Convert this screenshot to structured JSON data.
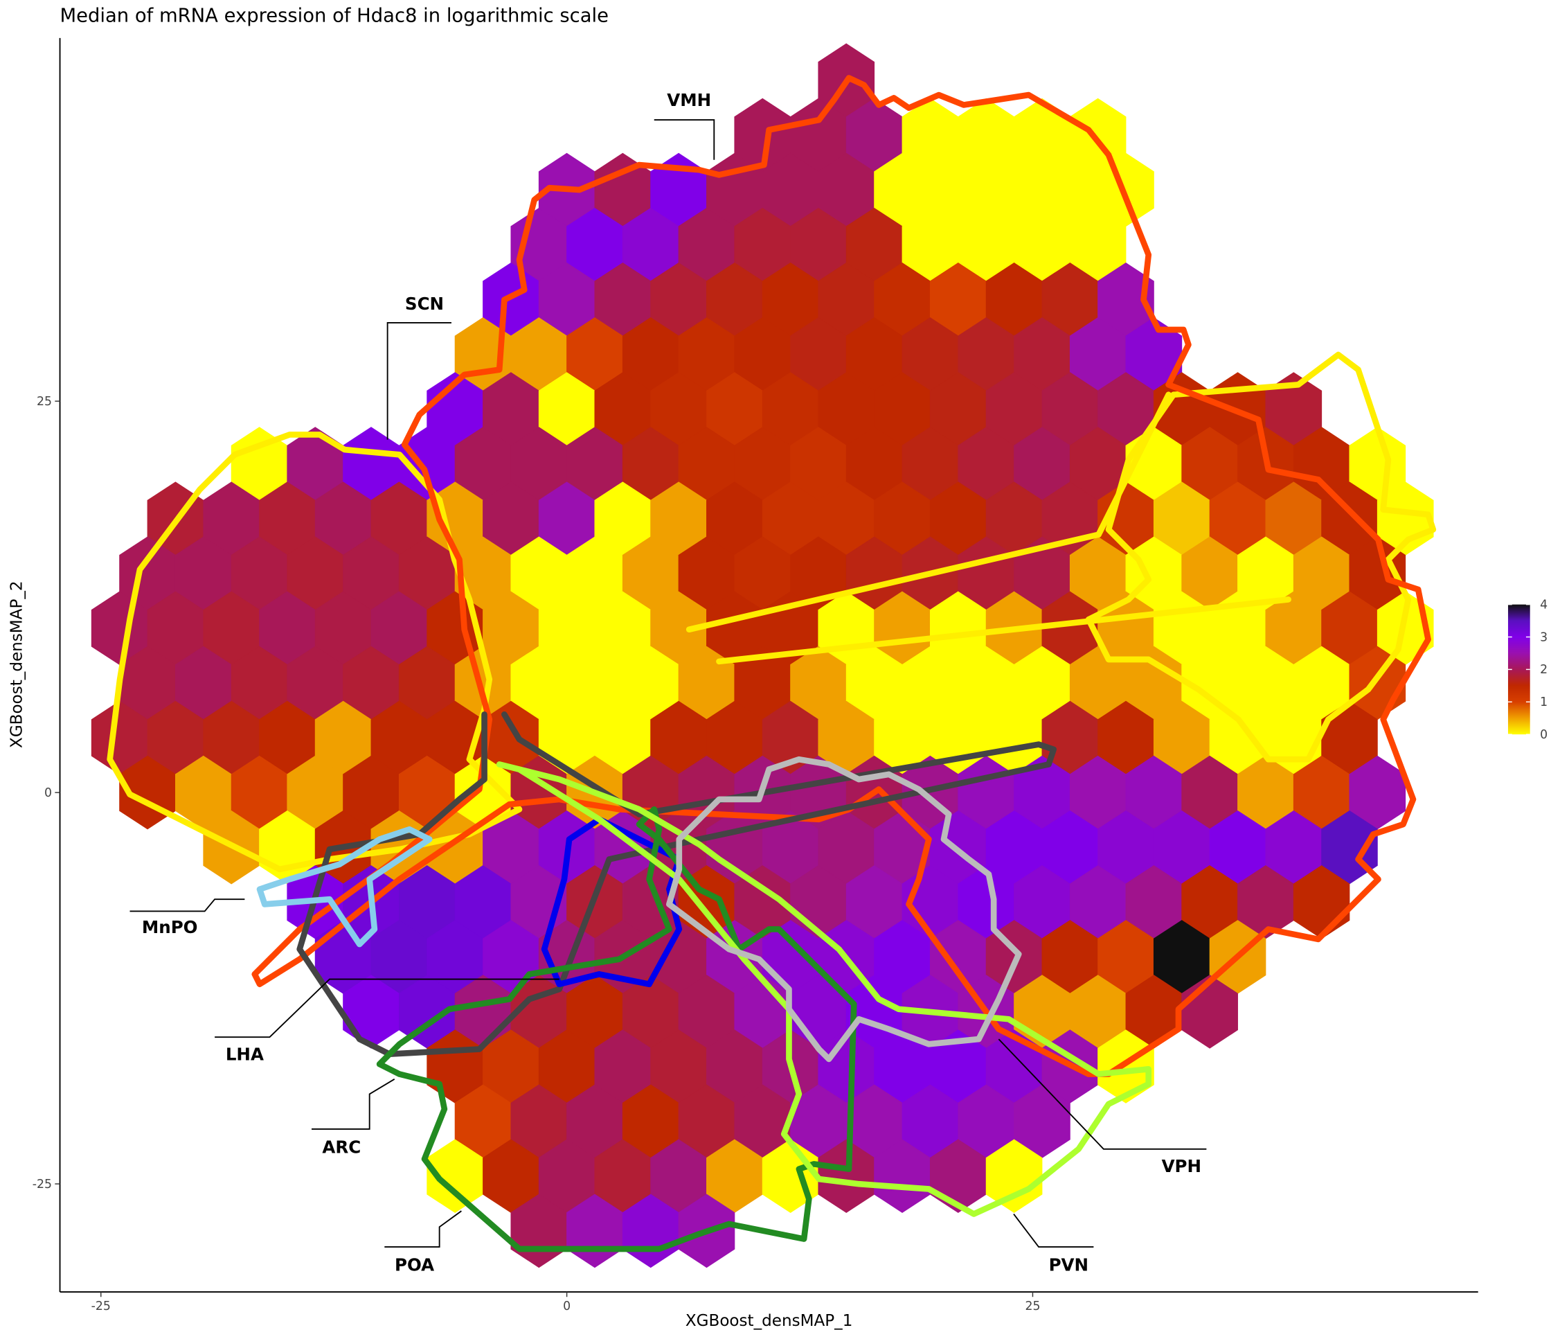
{
  "chart_data": {
    "type": "hexbin",
    "title": "Median of mRNA expression of Hdac8 in logarithmic scale",
    "x_label": "XGBoost_densMAP_1",
    "y_label": "XGBoost_densMAP_2",
    "xlim": [
      -27.2,
      48.9
    ],
    "ylim": [
      -31.9,
      48.2
    ],
    "xticks": [
      -25,
      0,
      25
    ],
    "yticks": [
      -25,
      0,
      25
    ],
    "colorbar": {
      "clim": [
        0,
        4
      ],
      "ticks": [
        0,
        1,
        2,
        3,
        4
      ],
      "colors": [
        "#ffff00",
        "#f0a000",
        "#d84000",
        "#c02800",
        "#a81858",
        "#9a10b0",
        "#8000e8",
        "#5a10c0",
        "#101010"
      ]
    },
    "hexbins": {
      "dx": 3,
      "dy": 3.5,
      "rows": [
        {
          "y": 45.5,
          "x0": 15,
          "values": [
            2
          ]
        },
        {
          "y": 42,
          "x0": 10.5,
          "values": [
            2,
            2,
            2.2,
            0,
            0,
            0,
            0
          ]
        },
        {
          "y": 38.5,
          "x0": 0,
          "values": [
            2.5,
            2,
            3,
            2,
            2,
            2,
            0,
            0,
            0,
            0,
            0
          ]
        },
        {
          "y": 35,
          "x0": -1.5,
          "values": [
            2.5,
            3,
            2.8,
            2,
            1.8,
            1.8,
            1.6,
            0,
            0,
            0,
            0
          ]
        },
        {
          "y": 31.5,
          "x0": -3,
          "values": [
            3,
            2.5,
            2,
            1.8,
            1.6,
            1.5,
            1.6,
            1.4,
            1,
            1.5,
            1.6,
            2.5
          ]
        },
        {
          "y": 28,
          "x0": -4.5,
          "values": [
            0.5,
            0.5,
            1,
            1.5,
            1.4,
            1.5,
            1.6,
            1.5,
            1.6,
            1.7,
            1.8,
            2.5,
            2.8
          ]
        },
        {
          "y": 24.5,
          "x0": -6,
          "values": [
            3,
            2,
            0,
            1.5,
            1.4,
            1.2,
            1.4,
            1.5,
            1.5,
            1.6,
            1.8,
            1.9,
            2,
            1.5,
            1.5,
            1.8
          ]
        },
        {
          "y": 21,
          "x0": -16.5,
          "values": [
            0,
            2.2,
            3,
            3,
            2,
            2,
            2,
            1.6,
            1.4,
            1.4,
            1.3,
            1.5,
            1.6,
            1.8,
            2,
            1.8,
            0,
            1.2,
            1.4,
            1.5,
            0
          ]
        },
        {
          "y": 17.5,
          "x0": -21,
          "values": [
            1.8,
            2,
            1.8,
            2,
            1.8,
            0.5,
            2,
            2.5,
            0,
            0.5,
            1.5,
            1.3,
            1.3,
            1.4,
            1.5,
            1.7,
            1.8,
            1.2,
            0.3,
            1,
            0.8,
            1.5,
            0
          ]
        },
        {
          "y": 14,
          "x0": -22.5,
          "values": [
            2,
            2,
            1.9,
            1.8,
            1.9,
            1.8,
            0.5,
            0,
            0,
            0.5,
            1.5,
            1.4,
            1.5,
            1.6,
            1.7,
            1.8,
            1.9,
            0.5,
            0,
            0.5,
            0,
            0.5,
            1.5
          ]
        },
        {
          "y": 10.5,
          "x0": -24,
          "values": [
            2,
            1.9,
            1.8,
            2,
            1.9,
            2,
            1.5,
            0.5,
            0,
            0,
            0.5,
            1.5,
            1.5,
            0,
            0.5,
            0,
            0.5,
            1.6,
            0.5,
            0,
            0,
            0.5,
            1.2,
            0
          ]
        },
        {
          "y": 7,
          "x0": -22.5,
          "values": [
            1.9,
            2,
            1.8,
            1.9,
            1.8,
            1.6,
            0.5,
            0,
            0,
            0,
            0.5,
            1.5,
            0.5,
            0,
            0,
            0,
            0,
            0.5,
            0.5,
            0,
            0,
            0,
            1
          ]
        },
        {
          "y": 3.5,
          "x0": -24,
          "values": [
            1.8,
            1.7,
            1.6,
            1.5,
            0.5,
            1.5,
            1.5,
            1.3,
            0,
            0,
            1.5,
            1.5,
            1.7,
            0.5,
            0,
            0,
            0,
            1.7,
            1.5,
            0.5,
            0,
            0,
            1.5
          ]
        },
        {
          "y": 0,
          "x0": -22.5,
          "values": [
            1.5,
            0.5,
            1,
            0.5,
            1.5,
            1,
            0,
            1.8,
            0.5,
            1.8,
            2,
            2.2,
            2.2,
            2,
            2.3,
            2.6,
            2.8,
            2.5,
            2.6,
            2,
            0.5,
            1,
            2.5
          ]
        },
        {
          "y": -3.5,
          "x0": -18,
          "values": [
            0.5,
            0,
            1.5,
            0.5,
            0.5,
            2.5,
            2.8,
            2.5,
            2,
            2.2,
            2.3,
            2.2,
            2.4,
            2.8,
            3,
            3,
            2.8,
            2.8,
            3,
            2.8,
            3.5
          ]
        },
        {
          "y": -7,
          "x0": -13.5,
          "values": [
            3,
            3.2,
            3.3,
            3.2,
            2.5,
            1.8,
            2,
            1.5,
            2,
            2.2,
            2.5,
            2.8,
            3,
            2.8,
            2.6,
            2.3,
            1.5,
            2,
            1.5
          ]
        },
        {
          "y": -10.5,
          "x0": -12,
          "values": [
            3.2,
            3.3,
            3.2,
            2.8,
            2.2,
            2,
            2,
            2.5,
            2.8,
            2.8,
            3,
            2.5,
            2,
            1.5,
            1,
            4,
            0.5
          ]
        },
        {
          "y": -14,
          "x0": -10.5,
          "values": [
            3,
            3.2,
            2.2,
            1.8,
            1.5,
            1.8,
            2,
            2.5,
            2.8,
            3,
            2.7,
            2.5,
            0.5,
            0.5,
            1.5,
            2
          ]
        },
        {
          "y": -17.5,
          "x0": -6,
          "values": [
            1.5,
            1.2,
            1.5,
            2,
            1.8,
            2,
            2.2,
            2.8,
            3,
            3,
            2.8,
            2.5,
            0
          ]
        },
        {
          "y": -21,
          "x0": -4.5,
          "values": [
            1,
            1.8,
            2,
            1.5,
            1.8,
            2,
            2.5,
            2.5,
            2.8,
            2.6,
            2.5
          ]
        },
        {
          "y": -24.5,
          "x0": -6,
          "values": [
            0,
            1.5,
            2,
            1.8,
            2.2,
            0.5,
            0,
            2,
            2.5,
            2.2,
            0
          ]
        },
        {
          "y": -28,
          "x0": -1.5,
          "values": [
            2,
            2.5,
            2.8,
            2.5
          ]
        }
      ]
    },
    "annotations": [
      "VMH",
      "SCN",
      "MnPO",
      "LHA",
      "ARC",
      "POA",
      "PVN",
      "VPH"
    ]
  }
}
